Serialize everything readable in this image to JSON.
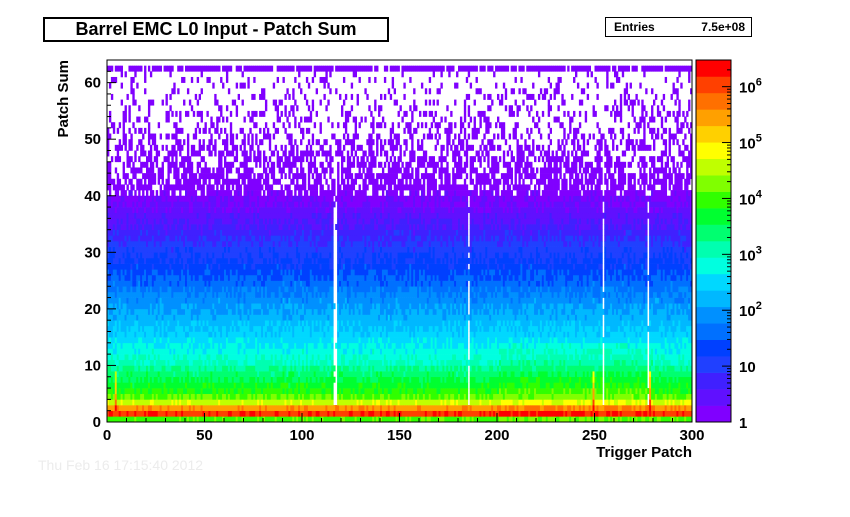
{
  "header": {
    "title": "Barrel EMC L0 Input - Patch Sum"
  },
  "stats": {
    "label": "Entries",
    "value": "7.5e+08"
  },
  "footer_faded_text": "Thu Feb 16 17:15:40 2012",
  "chart_data": {
    "type": "heatmap",
    "title": "Barrel EMC L0 Input - Patch Sum",
    "xlabel": "Trigger Patch",
    "ylabel": "Patch Sum",
    "xlim": [
      0,
      300
    ],
    "ylim": [
      0,
      64
    ],
    "x_ticks": [
      0,
      50,
      100,
      150,
      200,
      250,
      300
    ],
    "y_ticks": [
      0,
      10,
      20,
      30,
      40,
      50,
      60
    ],
    "z_scale": "log",
    "zlim": [
      1,
      3000000
    ],
    "z_ticks": [
      {
        "value": 1,
        "label": "1"
      },
      {
        "value": 10,
        "label": "10"
      },
      {
        "value": 100,
        "label": "10^2"
      },
      {
        "value": 1000,
        "label": "10^3"
      },
      {
        "value": 10000,
        "label": "10^4"
      },
      {
        "value": 100000,
        "label": "10^5"
      },
      {
        "value": 1000000,
        "label": "10^6"
      }
    ],
    "z_palette": [
      "#8000ff",
      "#6010ff",
      "#4020ff",
      "#2040ff",
      "#0040ff",
      "#0070ff",
      "#0090ff",
      "#00b8ff",
      "#00d8ff",
      "#00ffe0",
      "#00ffb0",
      "#00ff70",
      "#00ff30",
      "#30ff00",
      "#80ff00",
      "#c0ff00",
      "#ffff00",
      "#ffd000",
      "#ffa000",
      "#ff7000",
      "#ff4000",
      "#ff0000"
    ],
    "patch_count": 300,
    "sum_bins": 64,
    "profile_log10_counts_by_sum": [
      {
        "sum": 0,
        "log10": 4.0
      },
      {
        "sum": 1,
        "log10": 6.1
      },
      {
        "sum": 2,
        "log10": 5.5
      },
      {
        "sum": 3,
        "log10": 4.6
      },
      {
        "sum": 4,
        "log10": 4.1
      },
      {
        "sum": 6,
        "log10": 3.7
      },
      {
        "sum": 8,
        "log10": 3.4
      },
      {
        "sum": 10,
        "log10": 3.0
      },
      {
        "sum": 14,
        "log10": 2.55
      },
      {
        "sum": 20,
        "log10": 2.0
      },
      {
        "sum": 26,
        "log10": 1.4
      },
      {
        "sum": 30,
        "log10": 1.05
      },
      {
        "sum": 34,
        "log10": 0.65
      },
      {
        "sum": 38,
        "log10": 0.3
      },
      {
        "sum": 42,
        "log10": 0.05
      },
      {
        "sum": 50,
        "log10": 0.0
      },
      {
        "sum": 62,
        "log10": 0.0
      }
    ],
    "sparse_region_occupancy": [
      {
        "sum": 40,
        "fraction": 0.8
      },
      {
        "sum": 50,
        "fraction": 0.35
      },
      {
        "sum": 61,
        "fraction": 0.12
      }
    ],
    "overflow_row": {
      "sum": 62,
      "log10": 0.0,
      "fraction": 0.85
    },
    "hot_patches": [
      {
        "patch": 4,
        "note": "hot"
      },
      {
        "patch": 249,
        "note": "hot"
      },
      {
        "patch": 278,
        "note": "hot"
      }
    ],
    "dead_patches": [
      116,
      117,
      185,
      254,
      277
    ]
  }
}
